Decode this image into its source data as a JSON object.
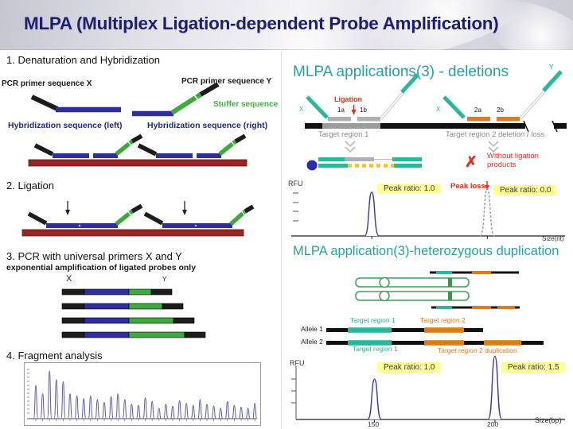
{
  "header": {
    "title": "MLPA (Multiplex Ligation-dependent Probe Amplification)"
  },
  "steps": {
    "s1": {
      "heading": "1. Denaturation and Hybridization",
      "pcr_primer_x": "PCR primer sequence X",
      "pcr_primer_y": "PCR primer sequence Y",
      "stuffer": "Stuffer sequence",
      "hyb_left": "Hybridization sequence (left)",
      "hyb_right": "Hybridization sequence (right)"
    },
    "s2": {
      "heading": "2. Ligation"
    },
    "s3": {
      "heading": "3. PCR with universal primers X and Y",
      "sub": "exponential amplification of ligated probes only",
      "label_x": "X",
      "label_y": "Y"
    },
    "s4": {
      "heading": "4. Fragment analysis"
    }
  },
  "deletions": {
    "title": "MLPA applications(3) - deletions",
    "ligation": "Ligation",
    "x1": "X",
    "y1": "Y",
    "x2": "X",
    "y2": "Y",
    "p1a": "1a",
    "p1b": "1b",
    "p2a": "2a",
    "p2b": "2b",
    "target1": "Target region 1",
    "target2": "Target region 2 deletion / loss",
    "without": "Without ligation products",
    "rfu": "RFU",
    "peak_ratio_1": "Peak ratio: 1.0",
    "peak_loss": "Peak loss",
    "peak_ratio_0": "Peak ratio: 0.0",
    "size_axis": "Size(nt)"
  },
  "duplication": {
    "title": "MLPA application(3)-heterozygous duplication",
    "allele1": "Allele 1",
    "allele2": "Allele 2",
    "target1_top": "Target region 1",
    "target2_top": "Target region 2",
    "target1_bottom": "Target region 1",
    "target2_bottom": "Target region 2 duplication",
    "rfu": "RFU",
    "peak_ratio_10": "Peak ratio: 1.0",
    "peak_ratio_15": "Peak ratio: 1.5",
    "tick150": "150",
    "tick200": "200",
    "size_axis": "Size(bp)"
  },
  "colors": {
    "title_navy": "#1d1d73",
    "teal_heading": "#2aa1a1",
    "teal_probe": "#2ab79b",
    "probe_blue": "#2e2e9e",
    "probe_green": "#3da93f",
    "target_red": "#962626",
    "orange": "#e07b17",
    "highlight_yellow": "#ffff99",
    "alert_red": "#e03020",
    "peak_navy": "#3a3a94"
  },
  "chart_data": [
    {
      "type": "line",
      "name": "fragment-analysis-electropherogram",
      "title": "4. Fragment analysis",
      "xlabel": "",
      "ylabel": "",
      "values": [
        0.7,
        0.52,
        1.0,
        0.82,
        0.78,
        0.52,
        0.48,
        0.42,
        0.48,
        0.4,
        0.34,
        0.46,
        0.52,
        0.4,
        0.3,
        0.28,
        0.44,
        0.36,
        0.22,
        0.3,
        0.26,
        0.38,
        0.32,
        0.28,
        0.4,
        0.3,
        0.26,
        0.22,
        0.36,
        0.28,
        0.24,
        0.22,
        0.32
      ]
    },
    {
      "type": "line",
      "name": "deletion-electropherogram",
      "ylabel": "RFU",
      "xlabel": "Size(nt)",
      "peaks": [
        {
          "x_frac": 0.27,
          "height": 1.0,
          "style": "solid",
          "label": "Peak ratio: 1.0"
        },
        {
          "x_frac": 0.71,
          "height": 1.08,
          "style": "dashed",
          "label": "Peak ratio: 0.0",
          "annotation": "Peak loss"
        }
      ]
    },
    {
      "type": "line",
      "name": "duplication-electropherogram",
      "ylabel": "RFU",
      "xlabel": "Size(bp)",
      "x_ticks": [
        "150",
        "200"
      ],
      "peaks": [
        {
          "x": 150,
          "x_frac": 0.29,
          "height": 0.62,
          "style": "solid",
          "label": "Peak ratio: 1.0"
        },
        {
          "x": 200,
          "x_frac": 0.735,
          "height": 0.97,
          "style": "solid",
          "label": "Peak ratio: 1.5"
        }
      ]
    }
  ]
}
